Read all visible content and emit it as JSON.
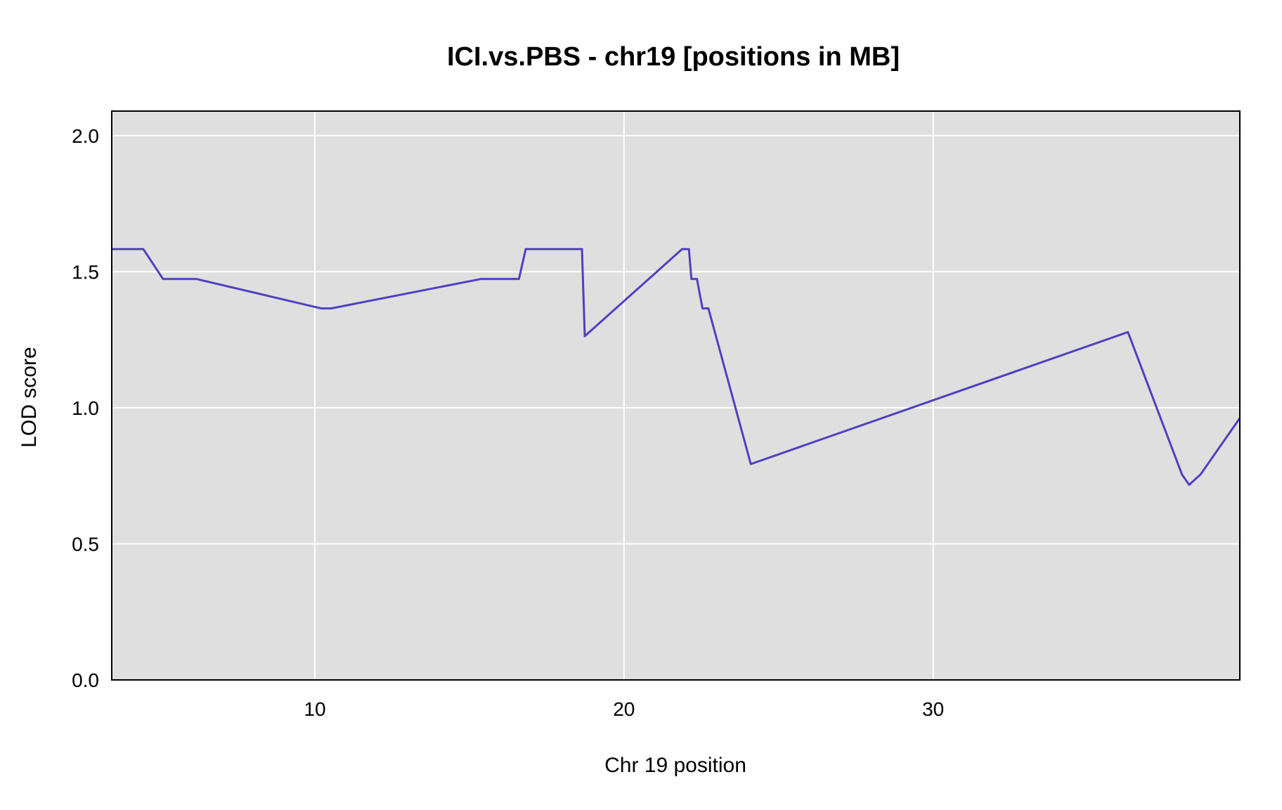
{
  "chart_data": {
    "type": "line",
    "title": "ICI.vs.PBS - chr19 [positions in MB]",
    "xlabel": "Chr 19 position",
    "ylabel": "LOD score",
    "xlim": [
      3.43,
      39.92
    ],
    "ylim": [
      0.0,
      2.09
    ],
    "xticks": [
      10,
      20,
      30
    ],
    "yticks": [
      "0.0",
      "0.5",
      "1.0",
      "1.5",
      "2.0"
    ],
    "grid": true,
    "background_color": "#dfdfdf",
    "line_color": "#5040c0",
    "series": [
      {
        "x": [
          3.43,
          4.45,
          5.09,
          6.17,
          10.2,
          10.53,
          15.37,
          16.6,
          16.82,
          18.64,
          18.73,
          21.88,
          22.1,
          22.18,
          22.36,
          22.54,
          22.73,
          24.1,
          36.3,
          38.05,
          38.28,
          38.65,
          39.92
        ],
        "y": [
          1.583,
          1.583,
          1.473,
          1.473,
          1.365,
          1.365,
          1.473,
          1.473,
          1.583,
          1.583,
          1.263,
          1.583,
          1.583,
          1.473,
          1.473,
          1.365,
          1.365,
          0.793,
          1.278,
          0.755,
          0.717,
          0.755,
          0.962
        ]
      }
    ]
  }
}
